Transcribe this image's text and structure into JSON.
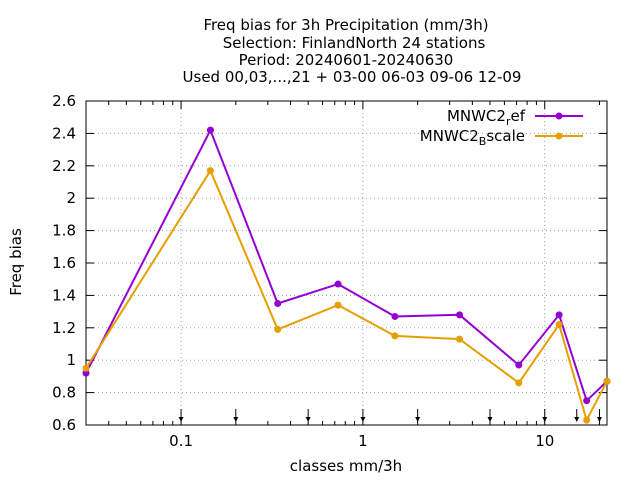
{
  "chart_data": {
    "type": "line",
    "title": [
      "Freq bias  for 3h Precipitation (mm/3h)",
      "Selection: FinlandNorth     24 stations",
      "Period: 20240601-20240630",
      "Used 00,03,...,21 + 03-00 06-03 09-06 12-09"
    ],
    "xlabel": "classes mm/3h",
    "ylabel": "Freq bias",
    "x_scale": "log",
    "xlim": [
      0.03,
      22
    ],
    "ylim": [
      0.6,
      2.6
    ],
    "xticks": [
      {
        "value": 0.1,
        "label": "0.1"
      },
      {
        "value": 1,
        "label": "1"
      },
      {
        "value": 10,
        "label": "10"
      }
    ],
    "yticks": [
      0.6,
      0.8,
      1,
      1.2,
      1.4,
      1.6,
      1.8,
      2,
      2.2,
      2.4,
      2.6
    ],
    "ytick_labels": [
      "0.6",
      "0.8",
      "1",
      "1.2",
      "1.4",
      "1.6",
      "1.8",
      "2",
      "2.2",
      "2.4",
      "2.6"
    ],
    "class_limits": [
      0.1,
      0.2,
      0.5,
      1,
      2,
      5,
      10,
      15,
      20
    ],
    "grid": true,
    "legend_position": "top-right",
    "series": [
      {
        "name": "MNWC2_ref",
        "legend_main": "MNWC2",
        "legend_sub": "r",
        "legend_tail": "ef",
        "color": "#9400d3",
        "x": [
          0.03,
          0.145,
          0.34,
          0.73,
          1.5,
          3.4,
          7.2,
          12,
          17,
          22
        ],
        "y": [
          0.92,
          2.42,
          1.35,
          1.47,
          1.27,
          1.28,
          0.97,
          1.28,
          0.75,
          0.87
        ]
      },
      {
        "name": "MNWC2_Bscale",
        "legend_main": "MNWC2",
        "legend_sub": "B",
        "legend_tail": "scale",
        "color": "#e69f00",
        "x": [
          0.03,
          0.145,
          0.34,
          0.73,
          1.5,
          3.4,
          7.2,
          12,
          17,
          22
        ],
        "y": [
          0.95,
          2.17,
          1.19,
          1.34,
          1.15,
          1.13,
          0.86,
          1.22,
          0.63,
          0.87
        ]
      }
    ]
  }
}
